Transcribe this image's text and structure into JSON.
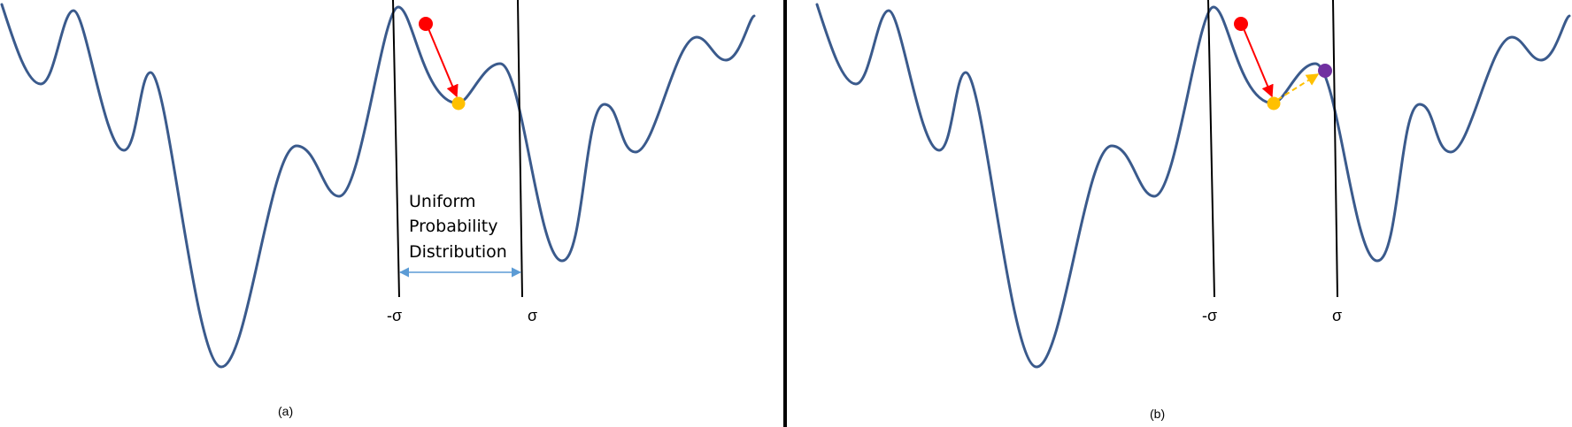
{
  "panels": [
    {
      "caption": "(a)",
      "neg_sigma_label": "-σ",
      "pos_sigma_label": "σ",
      "annotation": [
        "Uniform",
        "Probability",
        "Distribution"
      ]
    },
    {
      "caption": "(b)",
      "neg_sigma_label": "-σ",
      "pos_sigma_label": "σ"
    }
  ],
  "colors": {
    "curve": "#3a5a8c",
    "start_point": "#ff0000",
    "local_min_point": "#ffc000",
    "perturbed_point": "#7030a0",
    "descent_arrow": "#ff0000",
    "perturb_arrow": "#ffc000",
    "distribution_arrow": "#5b9bd5",
    "divider": "#000000"
  }
}
